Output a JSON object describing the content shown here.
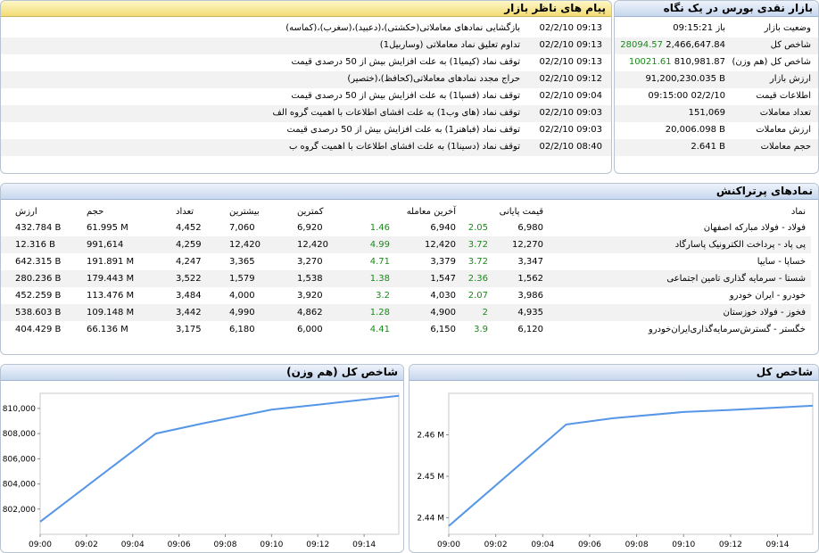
{
  "messages_panel": {
    "title": "پیام های ناظر بازار",
    "rows": [
      {
        "time": "02/2/10 09:13",
        "text": "بازگشایی نمادهای معاملاتی(حکشتی)،(دعبید)،(سغرب)،(کماسه)"
      },
      {
        "time": "02/2/10 09:13",
        "text": "تداوم تعلیق نماد معاملاتی (وساربیل1)"
      },
      {
        "time": "02/2/10 09:13",
        "text": "توقف نماد (کیمیا1) به علت افزایش بیش از 50 درصدی قیمت"
      },
      {
        "time": "02/2/10 09:12",
        "text": "حراج مجدد نمادهای معاملاتی(کحافظ)،(ختصیر)"
      },
      {
        "time": "02/2/10 09:04",
        "text": "توقف نماد (فسپا1) به علت افزایش بیش از 50 درصدی قیمت"
      },
      {
        "time": "02/2/10 09:03",
        "text": "توقف نماد (های وب1) به علت افشای اطلاعات با اهمیت گروه الف"
      },
      {
        "time": "02/2/10 09:03",
        "text": "توقف نماد (فباهنر1) به علت افزایش بیش از 50 درصدی قیمت"
      },
      {
        "time": "02/2/10 08:40",
        "text": "توقف نماد (دسینا1) به علت افشای اطلاعات با اهمیت گروه ب"
      }
    ]
  },
  "summary_panel": {
    "title": "بازار نقدی بورس در یک نگاه",
    "rows": [
      {
        "label": "وضعیت بازار",
        "value": "باز 09:15:21",
        "change": ""
      },
      {
        "label": "شاخص کل",
        "value": "2,466,647.84",
        "change": "28094.57"
      },
      {
        "label": "شاخص کل (هم وزن)",
        "value": "810,981.87",
        "change": "10021.61"
      },
      {
        "label": "ارزش بازار",
        "value": "91,200,230.035 B",
        "change": ""
      },
      {
        "label": "اطلاعات قیمت",
        "value": "09:15:00 02/2/10",
        "change": ""
      },
      {
        "label": "تعداد معاملات",
        "value": "151,069",
        "change": ""
      },
      {
        "label": "ارزش معاملات",
        "value": "20,006.098 B",
        "change": ""
      },
      {
        "label": "حجم معاملات",
        "value": "2.641 B",
        "change": ""
      }
    ]
  },
  "active_panel": {
    "title": "نمادهای پرتراکنش",
    "headers": {
      "symbol": "نماد",
      "close": "قیمت پایانی",
      "last": "آخرین معامله",
      "low": "کمترین",
      "high": "بیشترین",
      "count": "تعداد",
      "volume": "حجم",
      "value": "ارزش"
    },
    "rows": [
      {
        "symbol": "فولاد - فولاد مبارکه اصفهان",
        "close": "6,980",
        "close_pct": "2.05",
        "last": "6,940",
        "last_pct": "1.46",
        "low": "6,920",
        "high": "7,060",
        "count": "4,452",
        "volume": "61.995 M",
        "value": "432.784 B"
      },
      {
        "symbol": "پی پاد - پرداخت الکترونیک پاسارگاد",
        "close": "12,270",
        "close_pct": "3.72",
        "last": "12,420",
        "last_pct": "4.99",
        "low": "12,420",
        "high": "12,420",
        "count": "4,259",
        "volume": "991,614",
        "value": "12.316 B"
      },
      {
        "symbol": "خساپا - سایپا",
        "close": "3,347",
        "close_pct": "3.72",
        "last": "3,379",
        "last_pct": "4.71",
        "low": "3,270",
        "high": "3,365",
        "count": "4,247",
        "volume": "191.891 M",
        "value": "642.315 B"
      },
      {
        "symbol": "شستا - سرمایه گذاری تامین اجتماعی",
        "close": "1,562",
        "close_pct": "2.36",
        "last": "1,547",
        "last_pct": "1.38",
        "low": "1,538",
        "high": "1,579",
        "count": "3,522",
        "volume": "179.443 M",
        "value": "280.236 B"
      },
      {
        "symbol": "خودرو - ایران خودرو",
        "close": "3,986",
        "close_pct": "2.07",
        "last": "4,030",
        "last_pct": "3.2",
        "low": "3,920",
        "high": "4,000",
        "count": "3,484",
        "volume": "113.476 M",
        "value": "452.259 B"
      },
      {
        "symbol": "فخوز - فولاد خوزستان",
        "close": "4,935",
        "close_pct": "2",
        "last": "4,900",
        "last_pct": "1.28",
        "low": "4,862",
        "high": "4,990",
        "count": "3,442",
        "volume": "109.148 M",
        "value": "538.603 B"
      },
      {
        "symbol": "خگستر - گسترش‌سرمایه‌گذاری‌ایران‌خودرو",
        "close": "6,120",
        "close_pct": "3.9",
        "last": "6,150",
        "last_pct": "4.41",
        "low": "6,000",
        "high": "6,180",
        "count": "3,175",
        "volume": "66.136 M",
        "value": "404.429 B"
      }
    ]
  },
  "colors": {
    "positive": "#1a8a1a",
    "line": "#5596e6",
    "header_gold": "#f2dc74",
    "header_blue": "#c7d7ee"
  },
  "charts": {
    "index_chart": {
      "title": "شاخص کل",
      "chart_data": {
        "type": "line",
        "x_ticks": [
          "09:00",
          "09:02",
          "09:04",
          "09:06",
          "09:08",
          "09:10",
          "09:12",
          "09:14"
        ],
        "y_ticks": [
          "2.44 M",
          "2.45 M",
          "2.46 M"
        ],
        "ylim": [
          2436000,
          2470000
        ],
        "x": [
          0,
          5,
          7,
          10,
          12,
          15.5
        ],
        "x_units": "minutes after 09:00",
        "values": [
          2438000,
          2462500,
          2464000,
          2465500,
          2466000,
          2467000
        ]
      }
    },
    "eq_index_chart": {
      "title": "شاخص کل (هم وزن)",
      "chart_data": {
        "type": "line",
        "x_ticks": [
          "09:00",
          "09:02",
          "09:04",
          "09:06",
          "09:08",
          "09:10",
          "09:12",
          "09:14"
        ],
        "y_ticks": [
          "802,000",
          "804,000",
          "806,000",
          "808,000",
          "810,000"
        ],
        "ylim": [
          800000,
          811200
        ],
        "x": [
          0,
          5,
          7,
          10,
          12,
          15.5
        ],
        "x_units": "minutes after 09:00",
        "values": [
          801000,
          808000,
          808800,
          809900,
          810300,
          811000
        ]
      }
    }
  }
}
